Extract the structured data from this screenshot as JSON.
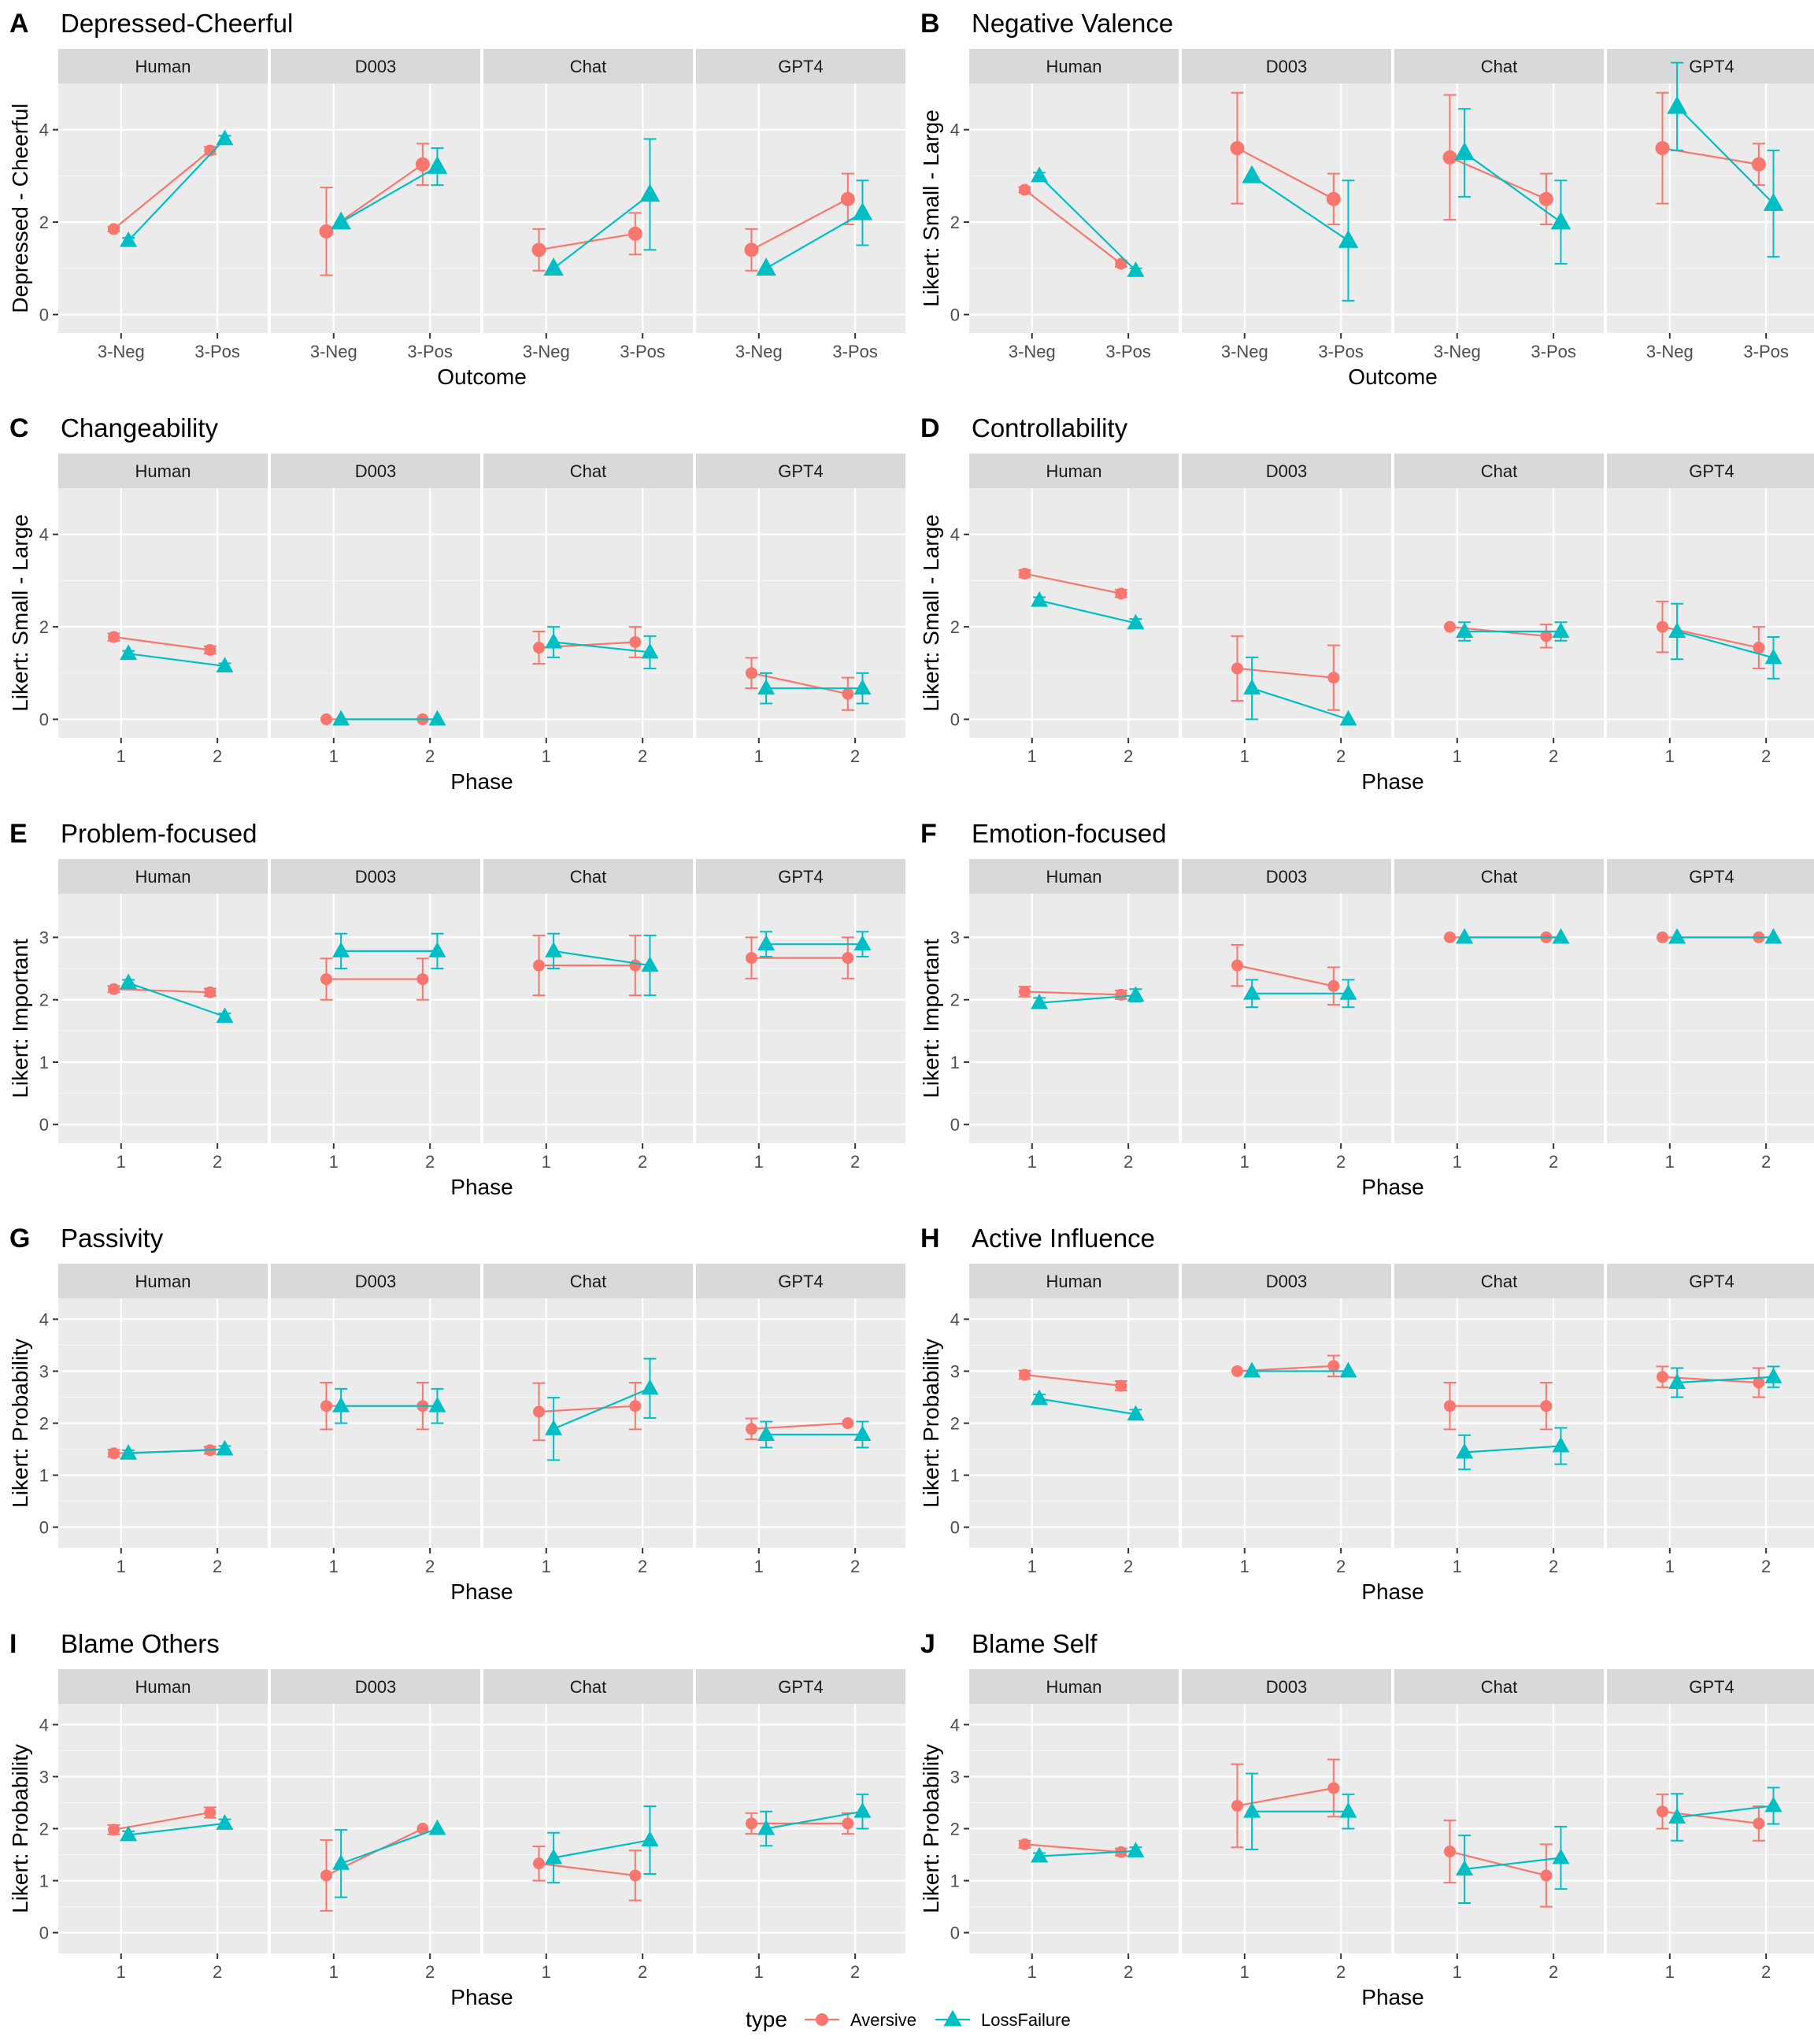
{
  "colors": {
    "Aversive": "#F8766D",
    "LossFailure": "#00BFC4"
  },
  "legend": {
    "title": "type",
    "items": [
      "Aversive",
      "LossFailure"
    ]
  },
  "chart_data": [
    {
      "letter": "A",
      "title": "Depressed-Cheerful",
      "type": "line",
      "ylabel": "Depressed - Cheerful",
      "xlabel": "Outcome",
      "ylim": [
        -0.4,
        5.0
      ],
      "yticks": [
        0,
        2,
        4
      ],
      "categories": [
        "3-Neg",
        "3-Pos"
      ],
      "facets": [
        {
          "name": "Human",
          "Aversive": [
            [
              1.85,
              0.05
            ],
            [
              3.55,
              0.08
            ]
          ],
          "LossFailure": [
            [
              1.6,
              0.06
            ],
            [
              3.8,
              0.07
            ]
          ]
        },
        {
          "name": "D003",
          "Aversive": [
            [
              1.8,
              0.95
            ],
            [
              3.25,
              0.45
            ]
          ],
          "LossFailure": [
            [
              2.0,
              0.0
            ],
            [
              3.2,
              0.4
            ]
          ]
        },
        {
          "name": "Chat",
          "Aversive": [
            [
              1.4,
              0.45
            ],
            [
              1.75,
              0.45
            ]
          ],
          "LossFailure": [
            [
              1.0,
              0.0
            ],
            [
              2.6,
              1.2
            ]
          ]
        },
        {
          "name": "GPT4",
          "Aversive": [
            [
              1.4,
              0.45
            ],
            [
              2.5,
              0.55
            ]
          ],
          "LossFailure": [
            [
              1.0,
              0.0
            ],
            [
              2.2,
              0.7
            ]
          ]
        }
      ]
    },
    {
      "letter": "B",
      "title": "Negative Valence",
      "type": "line",
      "ylabel": "Likert: Small - Large",
      "xlabel": "Outcome",
      "ylim": [
        -0.4,
        5.0
      ],
      "yticks": [
        0,
        2,
        4
      ],
      "categories": [
        "3-Neg",
        "3-Pos"
      ],
      "facets": [
        {
          "name": "Human",
          "Aversive": [
            [
              2.7,
              0.06
            ],
            [
              1.1,
              0.07
            ]
          ],
          "LossFailure": [
            [
              3.0,
              0.07
            ],
            [
              0.95,
              0.05
            ]
          ]
        },
        {
          "name": "D003",
          "Aversive": [
            [
              3.6,
              1.2
            ],
            [
              2.5,
              0.55
            ]
          ],
          "LossFailure": [
            [
              3.0,
              0.0
            ],
            [
              1.6,
              1.3
            ]
          ]
        },
        {
          "name": "Chat",
          "Aversive": [
            [
              3.4,
              1.35
            ],
            [
              2.5,
              0.55
            ]
          ],
          "LossFailure": [
            [
              3.5,
              0.95
            ],
            [
              2.0,
              0.9
            ]
          ]
        },
        {
          "name": "GPT4",
          "Aversive": [
            [
              3.6,
              1.2
            ],
            [
              3.25,
              0.45
            ]
          ],
          "LossFailure": [
            [
              4.5,
              0.95
            ],
            [
              2.4,
              1.15
            ]
          ]
        }
      ]
    },
    {
      "letter": "C",
      "title": "Changeability",
      "type": "line",
      "ylabel": "Likert: Small - Large",
      "xlabel": "Phase",
      "ylim": [
        -0.4,
        5.0
      ],
      "yticks": [
        0,
        2,
        4
      ],
      "categories": [
        "1",
        "2"
      ],
      "facets": [
        {
          "name": "Human",
          "Aversive": [
            [
              1.78,
              0.08
            ],
            [
              1.5,
              0.08
            ]
          ],
          "LossFailure": [
            [
              1.42,
              0.06
            ],
            [
              1.15,
              0.06
            ]
          ]
        },
        {
          "name": "D003",
          "Aversive": [
            [
              0,
              0
            ],
            [
              0,
              0
            ]
          ],
          "LossFailure": [
            [
              0,
              0
            ],
            [
              0,
              0
            ]
          ]
        },
        {
          "name": "Chat",
          "Aversive": [
            [
              1.55,
              0.35
            ],
            [
              1.67,
              0.33
            ]
          ],
          "LossFailure": [
            [
              1.67,
              0.33
            ],
            [
              1.45,
              0.35
            ]
          ]
        },
        {
          "name": "GPT4",
          "Aversive": [
            [
              1.0,
              0.33
            ],
            [
              0.55,
              0.35
            ]
          ],
          "LossFailure": [
            [
              0.67,
              0.33
            ],
            [
              0.67,
              0.33
            ]
          ]
        }
      ]
    },
    {
      "letter": "D",
      "title": "Controllability",
      "type": "line",
      "ylabel": "Likert: Small - Large",
      "xlabel": "Phase",
      "ylim": [
        -0.4,
        5.0
      ],
      "yticks": [
        0,
        2,
        4
      ],
      "categories": [
        "1",
        "2"
      ],
      "facets": [
        {
          "name": "Human",
          "Aversive": [
            [
              3.15,
              0.08
            ],
            [
              2.72,
              0.08
            ]
          ],
          "LossFailure": [
            [
              2.57,
              0.07
            ],
            [
              2.08,
              0.09
            ]
          ]
        },
        {
          "name": "D003",
          "Aversive": [
            [
              1.1,
              0.7
            ],
            [
              0.9,
              0.7
            ]
          ],
          "LossFailure": [
            [
              0.67,
              0.67
            ],
            [
              0,
              0
            ]
          ]
        },
        {
          "name": "Chat",
          "Aversive": [
            [
              2.0,
              0.0
            ],
            [
              1.8,
              0.25
            ]
          ],
          "LossFailure": [
            [
              1.9,
              0.2
            ],
            [
              1.9,
              0.2
            ]
          ]
        },
        {
          "name": "GPT4",
          "Aversive": [
            [
              2.0,
              0.55
            ],
            [
              1.55,
              0.45
            ]
          ],
          "LossFailure": [
            [
              1.9,
              0.6
            ],
            [
              1.33,
              0.45
            ]
          ]
        }
      ]
    },
    {
      "letter": "E",
      "title": "Problem-focused",
      "type": "line",
      "ylabel": "Likert: Important",
      "xlabel": "Phase",
      "ylim": [
        -0.3,
        3.7
      ],
      "yticks": [
        0,
        1,
        2,
        3
      ],
      "categories": [
        "1",
        "2"
      ],
      "facets": [
        {
          "name": "Human",
          "Aversive": [
            [
              2.17,
              0.05
            ],
            [
              2.12,
              0.06
            ]
          ],
          "LossFailure": [
            [
              2.27,
              0.05
            ],
            [
              1.73,
              0.05
            ]
          ]
        },
        {
          "name": "D003",
          "Aversive": [
            [
              2.33,
              0.33
            ],
            [
              2.33,
              0.33
            ]
          ],
          "LossFailure": [
            [
              2.78,
              0.28
            ],
            [
              2.78,
              0.28
            ]
          ]
        },
        {
          "name": "Chat",
          "Aversive": [
            [
              2.55,
              0.48
            ],
            [
              2.55,
              0.48
            ]
          ],
          "LossFailure": [
            [
              2.78,
              0.28
            ],
            [
              2.55,
              0.48
            ]
          ]
        },
        {
          "name": "GPT4",
          "Aversive": [
            [
              2.67,
              0.33
            ],
            [
              2.67,
              0.33
            ]
          ],
          "LossFailure": [
            [
              2.89,
              0.2
            ],
            [
              2.89,
              0.2
            ]
          ]
        }
      ]
    },
    {
      "letter": "F",
      "title": "Emotion-focused",
      "type": "line",
      "ylabel": "Likert: Important",
      "xlabel": "Phase",
      "ylim": [
        -0.3,
        3.7
      ],
      "yticks": [
        0,
        1,
        2,
        3
      ],
      "categories": [
        "1",
        "2"
      ],
      "facets": [
        {
          "name": "Human",
          "Aversive": [
            [
              2.13,
              0.08
            ],
            [
              2.08,
              0.07
            ]
          ],
          "LossFailure": [
            [
              1.95,
              0.08
            ],
            [
              2.07,
              0.1
            ]
          ]
        },
        {
          "name": "D003",
          "Aversive": [
            [
              2.55,
              0.33
            ],
            [
              2.22,
              0.3
            ]
          ],
          "LossFailure": [
            [
              2.1,
              0.22
            ],
            [
              2.1,
              0.22
            ]
          ]
        },
        {
          "name": "Chat",
          "Aversive": [
            [
              3.0,
              0.0
            ],
            [
              3.0,
              0.0
            ]
          ],
          "LossFailure": [
            [
              3.0,
              0.0
            ],
            [
              3.0,
              0.0
            ]
          ]
        },
        {
          "name": "GPT4",
          "Aversive": [
            [
              3.0,
              0.0
            ],
            [
              3.0,
              0.0
            ]
          ],
          "LossFailure": [
            [
              3.0,
              0.0
            ],
            [
              3.0,
              0.0
            ]
          ]
        }
      ]
    },
    {
      "letter": "G",
      "title": "Passivity",
      "type": "line",
      "ylabel": "Likert: Probability",
      "xlabel": "Phase",
      "ylim": [
        -0.4,
        4.4
      ],
      "yticks": [
        0,
        1,
        2,
        3,
        4
      ],
      "categories": [
        "1",
        "2"
      ],
      "facets": [
        {
          "name": "Human",
          "Aversive": [
            [
              1.42,
              0.07
            ],
            [
              1.48,
              0.07
            ]
          ],
          "LossFailure": [
            [
              1.42,
              0.06
            ],
            [
              1.5,
              0.06
            ]
          ]
        },
        {
          "name": "D003",
          "Aversive": [
            [
              2.33,
              0.45
            ],
            [
              2.33,
              0.45
            ]
          ],
          "LossFailure": [
            [
              2.33,
              0.33
            ],
            [
              2.33,
              0.33
            ]
          ]
        },
        {
          "name": "Chat",
          "Aversive": [
            [
              2.22,
              0.55
            ],
            [
              2.33,
              0.45
            ]
          ],
          "LossFailure": [
            [
              1.89,
              0.6
            ],
            [
              2.67,
              0.57
            ]
          ]
        },
        {
          "name": "GPT4",
          "Aversive": [
            [
              1.89,
              0.2
            ],
            [
              2.0,
              0.0
            ]
          ],
          "LossFailure": [
            [
              1.78,
              0.25
            ],
            [
              1.78,
              0.25
            ]
          ]
        }
      ]
    },
    {
      "letter": "H",
      "title": "Active Influence",
      "type": "line",
      "ylabel": "Likert: Probability",
      "xlabel": "Phase",
      "ylim": [
        -0.4,
        4.4
      ],
      "yticks": [
        0,
        1,
        2,
        3,
        4
      ],
      "categories": [
        "1",
        "2"
      ],
      "facets": [
        {
          "name": "Human",
          "Aversive": [
            [
              2.93,
              0.08
            ],
            [
              2.72,
              0.09
            ]
          ],
          "LossFailure": [
            [
              2.47,
              0.08
            ],
            [
              2.17,
              0.09
            ]
          ]
        },
        {
          "name": "D003",
          "Aversive": [
            [
              3.0,
              0.0
            ],
            [
              3.1,
              0.2
            ]
          ],
          "LossFailure": [
            [
              3.0,
              0.0
            ],
            [
              3.0,
              0.0
            ]
          ]
        },
        {
          "name": "Chat",
          "Aversive": [
            [
              2.33,
              0.45
            ],
            [
              2.33,
              0.45
            ]
          ],
          "LossFailure": [
            [
              1.44,
              0.33
            ],
            [
              1.56,
              0.35
            ]
          ]
        },
        {
          "name": "GPT4",
          "Aversive": [
            [
              2.89,
              0.2
            ],
            [
              2.78,
              0.28
            ]
          ],
          "LossFailure": [
            [
              2.78,
              0.28
            ],
            [
              2.89,
              0.2
            ]
          ]
        }
      ]
    },
    {
      "letter": "I",
      "title": "Blame Others",
      "type": "line",
      "ylabel": "Likert: Probability",
      "xlabel": "Phase",
      "ylim": [
        -0.4,
        4.4
      ],
      "yticks": [
        0,
        1,
        2,
        3,
        4
      ],
      "categories": [
        "1",
        "2"
      ],
      "facets": [
        {
          "name": "Human",
          "Aversive": [
            [
              1.98,
              0.09
            ],
            [
              2.31,
              0.1
            ]
          ],
          "LossFailure": [
            [
              1.88,
              0.07
            ],
            [
              2.1,
              0.08
            ]
          ]
        },
        {
          "name": "D003",
          "Aversive": [
            [
              1.1,
              0.68
            ],
            [
              2.0,
              0.0
            ]
          ],
          "LossFailure": [
            [
              1.33,
              0.65
            ],
            [
              2.0,
              0.0
            ]
          ]
        },
        {
          "name": "Chat",
          "Aversive": [
            [
              1.33,
              0.33
            ],
            [
              1.1,
              0.48
            ]
          ],
          "LossFailure": [
            [
              1.44,
              0.48
            ],
            [
              1.78,
              0.65
            ]
          ]
        },
        {
          "name": "GPT4",
          "Aversive": [
            [
              2.1,
              0.2
            ],
            [
              2.1,
              0.2
            ]
          ],
          "LossFailure": [
            [
              2.0,
              0.33
            ],
            [
              2.33,
              0.33
            ]
          ]
        }
      ]
    },
    {
      "letter": "J",
      "title": "Blame Self",
      "type": "line",
      "ylabel": "Likert: Probability",
      "xlabel": "Phase",
      "ylim": [
        -0.4,
        4.4
      ],
      "yticks": [
        0,
        1,
        2,
        3,
        4
      ],
      "categories": [
        "1",
        "2"
      ],
      "facets": [
        {
          "name": "Human",
          "Aversive": [
            [
              1.7,
              0.07
            ],
            [
              1.55,
              0.07
            ]
          ],
          "LossFailure": [
            [
              1.47,
              0.06
            ],
            [
              1.57,
              0.07
            ]
          ]
        },
        {
          "name": "D003",
          "Aversive": [
            [
              2.44,
              0.8
            ],
            [
              2.78,
              0.55
            ]
          ],
          "LossFailure": [
            [
              2.33,
              0.73
            ],
            [
              2.33,
              0.33
            ]
          ]
        },
        {
          "name": "Chat",
          "Aversive": [
            [
              1.56,
              0.6
            ],
            [
              1.1,
              0.6
            ]
          ],
          "LossFailure": [
            [
              1.22,
              0.65
            ],
            [
              1.44,
              0.6
            ]
          ]
        },
        {
          "name": "GPT4",
          "Aversive": [
            [
              2.33,
              0.33
            ],
            [
              2.1,
              0.33
            ]
          ],
          "LossFailure": [
            [
              2.22,
              0.45
            ],
            [
              2.44,
              0.35
            ]
          ]
        }
      ]
    }
  ]
}
